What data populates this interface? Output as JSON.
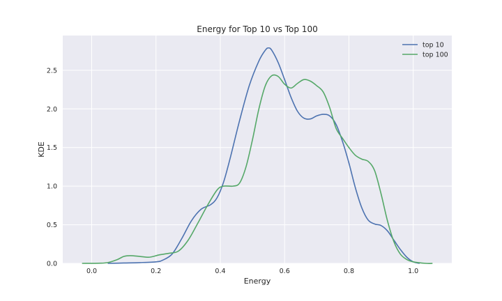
{
  "chart_data": {
    "type": "line",
    "title": "Energy for Top 10 vs Top 100",
    "xlabel": "Energy",
    "ylabel": "KDE",
    "xlim": [
      -0.09,
      1.12
    ],
    "ylim": [
      0,
      2.95
    ],
    "xticks": [
      0.0,
      0.2,
      0.4,
      0.6,
      0.8,
      1.0
    ],
    "xtick_labels": [
      "0.0",
      "0.2",
      "0.4",
      "0.6",
      "0.8",
      "1.0"
    ],
    "yticks": [
      0.0,
      0.5,
      1.0,
      1.5,
      2.0,
      2.5
    ],
    "ytick_labels": [
      "0.0",
      "0.5",
      "1.0",
      "1.5",
      "2.0",
      "2.5"
    ],
    "grid": true,
    "legend_position": "top-right",
    "background": "#EAEAF2",
    "series": [
      {
        "name": "top 10",
        "color": "#4C72B0",
        "points": [
          [
            0.05,
            0.0
          ],
          [
            0.1,
            0.005
          ],
          [
            0.15,
            0.01
          ],
          [
            0.2,
            0.02
          ],
          [
            0.22,
            0.04
          ],
          [
            0.25,
            0.12
          ],
          [
            0.28,
            0.32
          ],
          [
            0.31,
            0.55
          ],
          [
            0.34,
            0.7
          ],
          [
            0.37,
            0.76
          ],
          [
            0.39,
            0.85
          ],
          [
            0.41,
            1.05
          ],
          [
            0.43,
            1.35
          ],
          [
            0.46,
            1.85
          ],
          [
            0.49,
            2.3
          ],
          [
            0.52,
            2.62
          ],
          [
            0.54,
            2.76
          ],
          [
            0.55,
            2.79
          ],
          [
            0.56,
            2.76
          ],
          [
            0.58,
            2.6
          ],
          [
            0.6,
            2.38
          ],
          [
            0.62,
            2.15
          ],
          [
            0.64,
            1.97
          ],
          [
            0.66,
            1.88
          ],
          [
            0.68,
            1.87
          ],
          [
            0.7,
            1.91
          ],
          [
            0.72,
            1.93
          ],
          [
            0.74,
            1.91
          ],
          [
            0.76,
            1.8
          ],
          [
            0.78,
            1.58
          ],
          [
            0.8,
            1.3
          ],
          [
            0.82,
            0.98
          ],
          [
            0.84,
            0.72
          ],
          [
            0.86,
            0.56
          ],
          [
            0.88,
            0.51
          ],
          [
            0.9,
            0.49
          ],
          [
            0.92,
            0.42
          ],
          [
            0.94,
            0.3
          ],
          [
            0.96,
            0.18
          ],
          [
            0.98,
            0.08
          ],
          [
            1.0,
            0.02
          ],
          [
            1.02,
            0.0
          ]
        ]
      },
      {
        "name": "top 100",
        "color": "#55A868",
        "points": [
          [
            -0.03,
            0.0
          ],
          [
            0.02,
            0.002
          ],
          [
            0.05,
            0.01
          ],
          [
            0.08,
            0.05
          ],
          [
            0.1,
            0.09
          ],
          [
            0.12,
            0.1
          ],
          [
            0.15,
            0.09
          ],
          [
            0.18,
            0.08
          ],
          [
            0.21,
            0.11
          ],
          [
            0.24,
            0.13
          ],
          [
            0.27,
            0.16
          ],
          [
            0.3,
            0.3
          ],
          [
            0.33,
            0.52
          ],
          [
            0.36,
            0.75
          ],
          [
            0.39,
            0.95
          ],
          [
            0.41,
            1.0
          ],
          [
            0.44,
            1.0
          ],
          [
            0.46,
            1.04
          ],
          [
            0.48,
            1.25
          ],
          [
            0.5,
            1.6
          ],
          [
            0.52,
            2.0
          ],
          [
            0.54,
            2.3
          ],
          [
            0.56,
            2.43
          ],
          [
            0.58,
            2.42
          ],
          [
            0.6,
            2.32
          ],
          [
            0.62,
            2.27
          ],
          [
            0.64,
            2.33
          ],
          [
            0.66,
            2.38
          ],
          [
            0.68,
            2.36
          ],
          [
            0.7,
            2.3
          ],
          [
            0.72,
            2.22
          ],
          [
            0.74,
            2.02
          ],
          [
            0.76,
            1.75
          ],
          [
            0.78,
            1.62
          ],
          [
            0.8,
            1.5
          ],
          [
            0.82,
            1.4
          ],
          [
            0.84,
            1.35
          ],
          [
            0.86,
            1.32
          ],
          [
            0.88,
            1.2
          ],
          [
            0.9,
            0.9
          ],
          [
            0.92,
            0.55
          ],
          [
            0.94,
            0.28
          ],
          [
            0.96,
            0.12
          ],
          [
            0.98,
            0.05
          ],
          [
            1.0,
            0.02
          ],
          [
            1.04,
            0.0
          ],
          [
            1.06,
            0.0
          ]
        ]
      }
    ]
  }
}
